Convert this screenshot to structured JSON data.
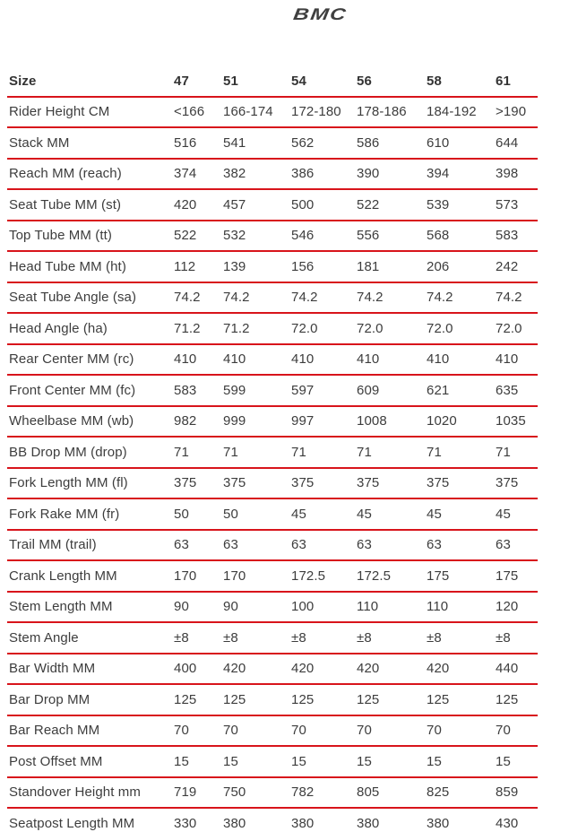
{
  "logo": {
    "text": "BMC"
  },
  "table": {
    "header": {
      "label": "Size",
      "sizes": [
        "47",
        "51",
        "54",
        "56",
        "58",
        "61"
      ]
    },
    "rows": [
      {
        "label": "Rider Height CM",
        "values": [
          "<166",
          "166-174",
          "172-180",
          "178-186",
          "184-192",
          ">190"
        ]
      },
      {
        "label": "Stack MM",
        "values": [
          "516",
          "541",
          "562",
          "586",
          "610",
          "644"
        ]
      },
      {
        "label": "Reach MM (reach)",
        "values": [
          "374",
          "382",
          "386",
          "390",
          "394",
          "398"
        ]
      },
      {
        "label": "Seat Tube MM (st)",
        "values": [
          "420",
          "457",
          "500",
          "522",
          "539",
          "573"
        ]
      },
      {
        "label": "Top Tube MM (tt)",
        "values": [
          "522",
          "532",
          "546",
          "556",
          "568",
          "583"
        ]
      },
      {
        "label": "Head Tube MM (ht)",
        "values": [
          "112",
          "139",
          "156",
          "181",
          "206",
          "242"
        ]
      },
      {
        "label": "Seat Tube Angle (sa)",
        "values": [
          "74.2",
          "74.2",
          "74.2",
          "74.2",
          "74.2",
          "74.2"
        ]
      },
      {
        "label": "Head Angle (ha)",
        "values": [
          "71.2",
          "71.2",
          "72.0",
          "72.0",
          "72.0",
          "72.0"
        ]
      },
      {
        "label": "Rear Center MM (rc)",
        "values": [
          "410",
          "410",
          "410",
          "410",
          "410",
          "410"
        ]
      },
      {
        "label": "Front Center MM (fc)",
        "values": [
          "583",
          "599",
          "597",
          "609",
          "621",
          "635"
        ]
      },
      {
        "label": "Wheelbase MM (wb)",
        "values": [
          "982",
          "999",
          "997",
          "1008",
          "1020",
          "1035"
        ]
      },
      {
        "label": "BB Drop MM (drop)",
        "values": [
          "71",
          "71",
          "71",
          "71",
          "71",
          "71"
        ]
      },
      {
        "label": "Fork Length MM (fl)",
        "values": [
          "375",
          "375",
          "375",
          "375",
          "375",
          "375"
        ]
      },
      {
        "label": "Fork Rake MM (fr)",
        "values": [
          "50",
          "50",
          "45",
          "45",
          "45",
          "45"
        ]
      },
      {
        "label": "Trail MM (trail)",
        "values": [
          "63",
          "63",
          "63",
          "63",
          "63",
          "63"
        ]
      },
      {
        "label": "Crank Length MM",
        "values": [
          "170",
          "170",
          "172.5",
          "172.5",
          "175",
          "175"
        ]
      },
      {
        "label": "Stem Length MM",
        "values": [
          "90",
          "90",
          "100",
          "110",
          "110",
          "120"
        ]
      },
      {
        "label": "Stem Angle",
        "values": [
          "±8",
          "±8",
          "±8",
          "±8",
          "±8",
          "±8"
        ]
      },
      {
        "label": "Bar Width MM",
        "values": [
          "400",
          "420",
          "420",
          "420",
          "420",
          "440"
        ]
      },
      {
        "label": "Bar Drop MM",
        "values": [
          "125",
          "125",
          "125",
          "125",
          "125",
          "125"
        ]
      },
      {
        "label": "Bar Reach MM",
        "values": [
          "70",
          "70",
          "70",
          "70",
          "70",
          "70"
        ]
      },
      {
        "label": "Post Offset MM",
        "values": [
          "15",
          "15",
          "15",
          "15",
          "15",
          "15"
        ]
      },
      {
        "label": "Standover Height mm",
        "values": [
          "719",
          "750",
          "782",
          "805",
          "825",
          "859"
        ]
      },
      {
        "label": "Seatpost Length MM",
        "values": [
          "330",
          "380",
          "380",
          "380",
          "380",
          "430"
        ]
      }
    ]
  },
  "colors": {
    "accent_red": "#d8141b",
    "text": "#3d3d3d",
    "logo_gray": "#3f3f3f"
  }
}
